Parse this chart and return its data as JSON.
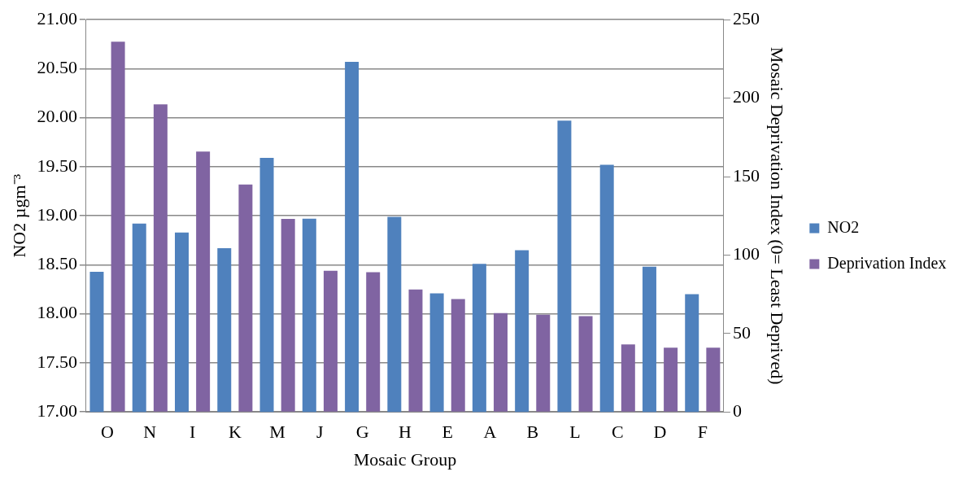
{
  "chart_data": {
    "type": "bar",
    "xlabel": "Mosaic Group",
    "ylabel": "NO2 µgm⁻³",
    "y2label": "Mosaic Deprivation Index (0= Least Deprived)",
    "categories": [
      "O",
      "N",
      "I",
      "K",
      "M",
      "J",
      "G",
      "H",
      "E",
      "A",
      "B",
      "L",
      "C",
      "D",
      "F"
    ],
    "series": [
      {
        "name": "NO2",
        "color": "#4f81bd",
        "values": [
          18.43,
          18.92,
          18.83,
          18.67,
          19.59,
          18.97,
          20.57,
          18.99,
          18.21,
          18.51,
          18.65,
          19.97,
          19.52,
          18.48,
          18.2
        ]
      },
      {
        "name": "Deprivation Index",
        "color": "#8064a2",
        "axis": "y2",
        "values": [
          236,
          196,
          166,
          145,
          123,
          90,
          89,
          78,
          72,
          63,
          62,
          61,
          43,
          41,
          41
        ]
      }
    ],
    "ylim": [
      17,
      21
    ],
    "yticks": [
      {
        "value": 17,
        "label": "17.00"
      },
      {
        "value": 17.5,
        "label": "17.50"
      },
      {
        "value": 18,
        "label": "18.00"
      },
      {
        "value": 18.5,
        "label": "18.50"
      },
      {
        "value": 19,
        "label": "19.00"
      },
      {
        "value": 19.5,
        "label": "19.50"
      },
      {
        "value": 20,
        "label": "20.00"
      },
      {
        "value": 20.5,
        "label": "20.50"
      },
      {
        "value": 21,
        "label": "21.00"
      }
    ],
    "y2lim": [
      0,
      250
    ],
    "y2ticks": [
      0,
      50,
      100,
      150,
      200,
      250
    ],
    "grid": "y",
    "legend": "right"
  }
}
